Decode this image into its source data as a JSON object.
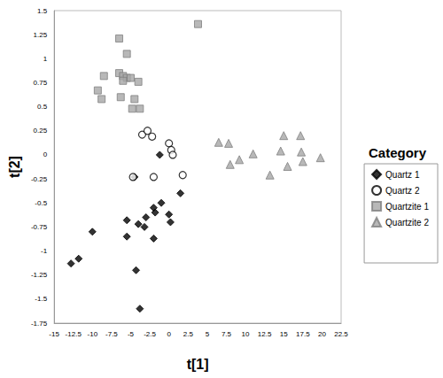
{
  "chart_data": {
    "type": "scatter",
    "x_label": "t[1]",
    "y_label": "t[2]",
    "legend_title": "Category",
    "legend": "right",
    "grid": false,
    "xlim": [
      -15,
      22.5
    ],
    "xticks": [
      -15,
      -12.5,
      -10,
      -7.5,
      -5,
      -2.5,
      0,
      2.5,
      5,
      7.5,
      10,
      12.5,
      15,
      17.5,
      20,
      22.5
    ],
    "ylim": [
      -1.75,
      1.5
    ],
    "yticks": [
      -1.75,
      -1.5,
      -1.25,
      -1,
      -0.75,
      -0.5,
      -0.25,
      0,
      0.25,
      0.5,
      0.75,
      1,
      1.25,
      1.5
    ],
    "series": [
      {
        "name": "Quartz 1",
        "color": "#000000",
        "marker": "diamond",
        "x": [
          -1.2,
          -4.5,
          1.5,
          -1.0,
          -2.0,
          -1.8,
          0.0,
          -3.0,
          -5.5,
          -4.0,
          0.2,
          -3.2,
          -2.0,
          -5.5,
          -10.0,
          -11.8,
          -12.8,
          -4.3,
          -3.8
        ],
        "values": [
          0.0,
          -0.23,
          -0.4,
          -0.5,
          -0.55,
          -0.6,
          -0.62,
          -0.65,
          -0.68,
          -0.72,
          -0.7,
          -0.75,
          -0.87,
          -0.85,
          -0.8,
          -1.08,
          -1.13,
          -1.2,
          -1.6
        ]
      },
      {
        "name": "Quartz 2",
        "color": "#000000",
        "marker": "open-circle",
        "x": [
          -3.5,
          -2.8,
          -2.2,
          0.0,
          0.3,
          0.5,
          -2.0,
          1.8,
          -4.7
        ],
        "values": [
          0.21,
          0.25,
          0.19,
          0.12,
          0.05,
          0.0,
          -0.23,
          -0.21,
          -0.23
        ]
      },
      {
        "name": "Quartzite 1",
        "color": "#a6a6a6",
        "marker": "square",
        "x": [
          -6.5,
          -5.5,
          3.8,
          -8.5,
          -6.5,
          -6.0,
          -5.5,
          -5.0,
          -6.0,
          -4.0,
          -9.3,
          -8.8,
          -6.3,
          -4.5,
          -4.8,
          -3.8
        ],
        "values": [
          1.21,
          1.05,
          1.36,
          0.82,
          0.85,
          0.82,
          0.8,
          0.8,
          0.77,
          0.76,
          0.67,
          0.58,
          0.6,
          0.58,
          0.48,
          0.48
        ]
      },
      {
        "name": "Quartzite 2",
        "color": "#a6a6a6",
        "marker": "triangle",
        "x": [
          6.5,
          7.8,
          8.0,
          9.2,
          11.0,
          13.2,
          14.6,
          15.0,
          15.5,
          17.2,
          17.3,
          17.5,
          19.8
        ],
        "values": [
          0.13,
          0.12,
          -0.1,
          -0.05,
          0.01,
          -0.21,
          0.04,
          0.2,
          -0.12,
          0.2,
          0.03,
          -0.07,
          -0.03
        ]
      }
    ]
  }
}
